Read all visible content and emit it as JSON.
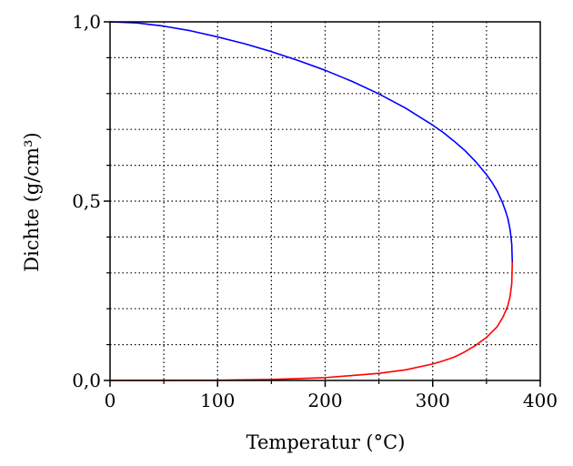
{
  "chart_data": {
    "type": "line",
    "title": "",
    "xlabel": "Temperatur (°C)",
    "ylabel": "Dichte (g/cm³)",
    "xlim": [
      0,
      400
    ],
    "ylim": [
      0.0,
      1.0
    ],
    "xticks": [
      0,
      100,
      200,
      300,
      400
    ],
    "xtick_labels": [
      "0",
      "100",
      "200",
      "300",
      "400"
    ],
    "yticks": [
      0.0,
      0.5,
      1.0
    ],
    "ytick_labels": [
      "0,0",
      "0,5",
      "1,0"
    ],
    "grid": true,
    "grid_style": "dotted",
    "grid_x_step": 50,
    "grid_y_step": 0.1,
    "legend": "none",
    "series": [
      {
        "color": "#0000ff",
        "x": [
          0,
          25,
          50,
          75,
          100,
          125,
          150,
          175,
          200,
          225,
          250,
          275,
          300,
          310,
          320,
          330,
          340,
          350,
          355,
          360,
          365,
          368,
          370,
          372,
          373.5,
          374
        ],
        "y": [
          1.0,
          0.997,
          0.988,
          0.975,
          0.958,
          0.939,
          0.917,
          0.892,
          0.865,
          0.834,
          0.799,
          0.759,
          0.712,
          0.691,
          0.667,
          0.641,
          0.61,
          0.574,
          0.553,
          0.528,
          0.495,
          0.47,
          0.45,
          0.42,
          0.38,
          0.33
        ]
      },
      {
        "color": "#ff0000",
        "x": [
          0,
          50,
          100,
          150,
          200,
          250,
          275,
          300,
          310,
          320,
          330,
          340,
          350,
          355,
          360,
          365,
          368,
          370,
          372,
          373.5,
          374
        ],
        "y": [
          0.0,
          0.0001,
          0.0006,
          0.0026,
          0.0079,
          0.0199,
          0.0297,
          0.046,
          0.055,
          0.065,
          0.08,
          0.098,
          0.12,
          0.135,
          0.15,
          0.175,
          0.195,
          0.21,
          0.235,
          0.27,
          0.33
        ]
      }
    ]
  }
}
